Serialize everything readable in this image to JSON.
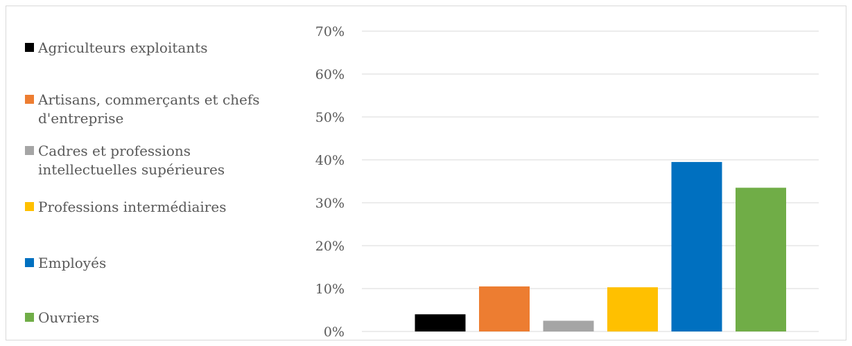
{
  "chart_data": {
    "type": "bar",
    "title": "",
    "xlabel": "",
    "ylabel": "",
    "ylim": [
      0,
      0.7
    ],
    "yticks": [
      {
        "value": 0.0,
        "label": "0%"
      },
      {
        "value": 0.1,
        "label": "10%"
      },
      {
        "value": 0.2,
        "label": "20%"
      },
      {
        "value": 0.3,
        "label": "30%"
      },
      {
        "value": 0.4,
        "label": "40%"
      },
      {
        "value": 0.5,
        "label": "50%"
      },
      {
        "value": 0.6,
        "label": "60%"
      },
      {
        "value": 0.7,
        "label": "70%"
      }
    ],
    "grid": true,
    "legend_position": "left",
    "series": [
      {
        "name": "Agriculteurs exploitants",
        "value": 0.04,
        "color": "#000000"
      },
      {
        "name": "Artisans, commerçants et chefs d'entreprise",
        "value": 0.105,
        "color": "#ed7d31"
      },
      {
        "name": "Cadres et professions intellectuelles supérieures",
        "value": 0.025,
        "color": "#a5a5a5"
      },
      {
        "name": "Professions intermédiaires",
        "value": 0.103,
        "color": "#ffc000"
      },
      {
        "name": "Employés",
        "value": 0.395,
        "color": "#0070c0"
      },
      {
        "name": "Ouvriers",
        "value": 0.335,
        "color": "#70ad47"
      }
    ]
  }
}
